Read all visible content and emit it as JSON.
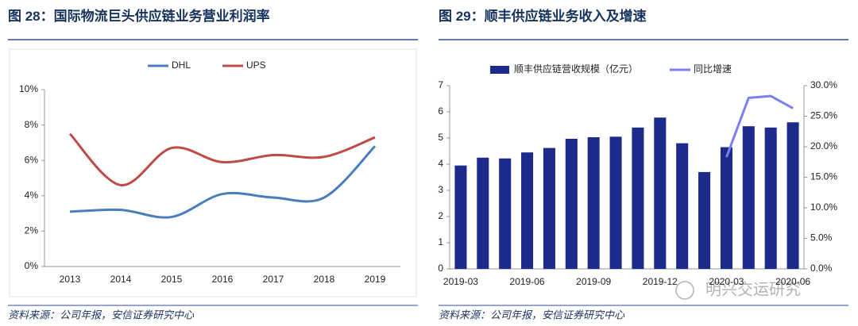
{
  "chart_data": [
    {
      "type": "line",
      "title": "图 28：国际物流巨头供应链业务营业利润率",
      "source": "资料来源：公司年报，安信证券研究中心",
      "categories": [
        "2013",
        "2014",
        "2015",
        "2016",
        "2017",
        "2018",
        "2019"
      ],
      "series": [
        {
          "name": "DHL",
          "color": "#4a7ebb",
          "values": [
            3.1,
            3.2,
            2.8,
            4.1,
            3.9,
            3.9,
            6.8
          ]
        },
        {
          "name": "UPS",
          "color": "#be4b48",
          "values": [
            7.5,
            4.6,
            6.7,
            5.9,
            6.3,
            6.2,
            7.3
          ]
        }
      ],
      "ylim": [
        0,
        10
      ],
      "yticks": [
        {
          "value": 0,
          "label": "0%"
        },
        {
          "value": 2,
          "label": "2%"
        },
        {
          "value": 4,
          "label": "4%"
        },
        {
          "value": 6,
          "label": "6%"
        },
        {
          "value": 8,
          "label": "8%"
        },
        {
          "value": 10,
          "label": "10%"
        }
      ],
      "legend": "top"
    },
    {
      "type": "bar",
      "title": "图 29：顺丰供应链业务收入及增速",
      "source": "资料来源：公司年报，安信证券研究中心",
      "categories": [
        "2019-03",
        null,
        null,
        "2019-06",
        null,
        null,
        "2019-09",
        null,
        null,
        "2019-12",
        null,
        null,
        "2020-03",
        null,
        null,
        "2020-06"
      ],
      "series": [
        {
          "name": "顺丰供应链营收规模（亿元）",
          "type": "bar",
          "color": "#1c2a8c",
          "values": [
            3.95,
            4.25,
            4.22,
            4.45,
            4.62,
            4.97,
            5.03,
            5.05,
            5.4,
            5.78,
            4.8,
            3.7,
            4.65,
            5.45,
            5.4,
            5.6
          ]
        },
        {
          "name": "同比增速",
          "type": "line",
          "axis": "y2",
          "color": "#7b7ff0",
          "values": [
            null,
            null,
            null,
            null,
            null,
            null,
            null,
            null,
            null,
            null,
            null,
            null,
            18.3,
            28.0,
            28.3,
            26.3
          ]
        }
      ],
      "ylim": [
        0,
        7
      ],
      "yticks": [
        0,
        1,
        2,
        3,
        4,
        5,
        6,
        7
      ],
      "y2lim": [
        0,
        30
      ],
      "y2ticks": [
        {
          "value": 0,
          "label": "0.0%"
        },
        {
          "value": 5,
          "label": "5.0%"
        },
        {
          "value": 10,
          "label": "10.0%"
        },
        {
          "value": 15,
          "label": "15.0%"
        },
        {
          "value": 20,
          "label": "20.0%"
        },
        {
          "value": 25,
          "label": "25.0%"
        },
        {
          "value": 30,
          "label": "30.0%"
        }
      ],
      "legend": "top"
    }
  ],
  "watermark": "明兴交运研究"
}
